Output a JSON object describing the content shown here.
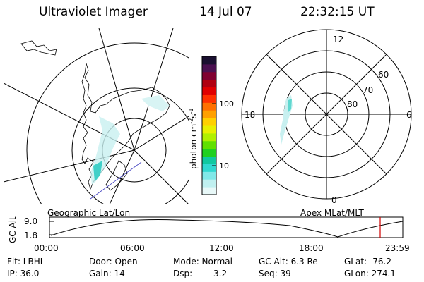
{
  "header": {
    "title": "Ultraviolet Imager",
    "date": "14 Jul 07",
    "time": "22:32:15 UT"
  },
  "panels": {
    "left_label": "Geographic Lat/Lon",
    "right_label": "Apex MLat/MLT"
  },
  "colorbar": {
    "unit_label": "photon cm",
    "unit_exp1": "-2",
    "unit_mid": "s",
    "unit_exp2": "-1",
    "tick_100": "100",
    "tick_10": "10",
    "colors": [
      "#1a1030",
      "#4a1050",
      "#800030",
      "#b00010",
      "#e00000",
      "#ff3000",
      "#ff7000",
      "#ffa000",
      "#ffd000",
      "#e8f000",
      "#b0f000",
      "#60e000",
      "#20d020",
      "#10c8a0",
      "#30d8d0",
      "#80e8e8",
      "#c0f0f0",
      "#e8f8f8"
    ]
  },
  "polar": {
    "mlt_12": "12",
    "mlt_18": "18",
    "mlt_6": "6",
    "mlt_0": "0",
    "lat_60": "60",
    "lat_70": "70",
    "lat_80": "80"
  },
  "timeline": {
    "ylabel": "GC Alt",
    "y_top": "9.0",
    "y_bottom": "1.8",
    "ticks": [
      "00:00",
      "06:00",
      "12:00",
      "18:00",
      "23:59"
    ],
    "marker_color": "#d00000"
  },
  "info": {
    "flt": "Flt: LBHL",
    "ip": "IP: 36.0",
    "door": "Door: Open",
    "gain": "Gain: 14",
    "mode": "Mode: Normal",
    "dsp_label": "Dsp:",
    "dsp_value": "3.2",
    "gcalt": "GC Alt: 6.3 Re",
    "seq": "Seq: 39",
    "glat": "GLat: -76.2",
    "glon": "GLon: 274.1"
  }
}
